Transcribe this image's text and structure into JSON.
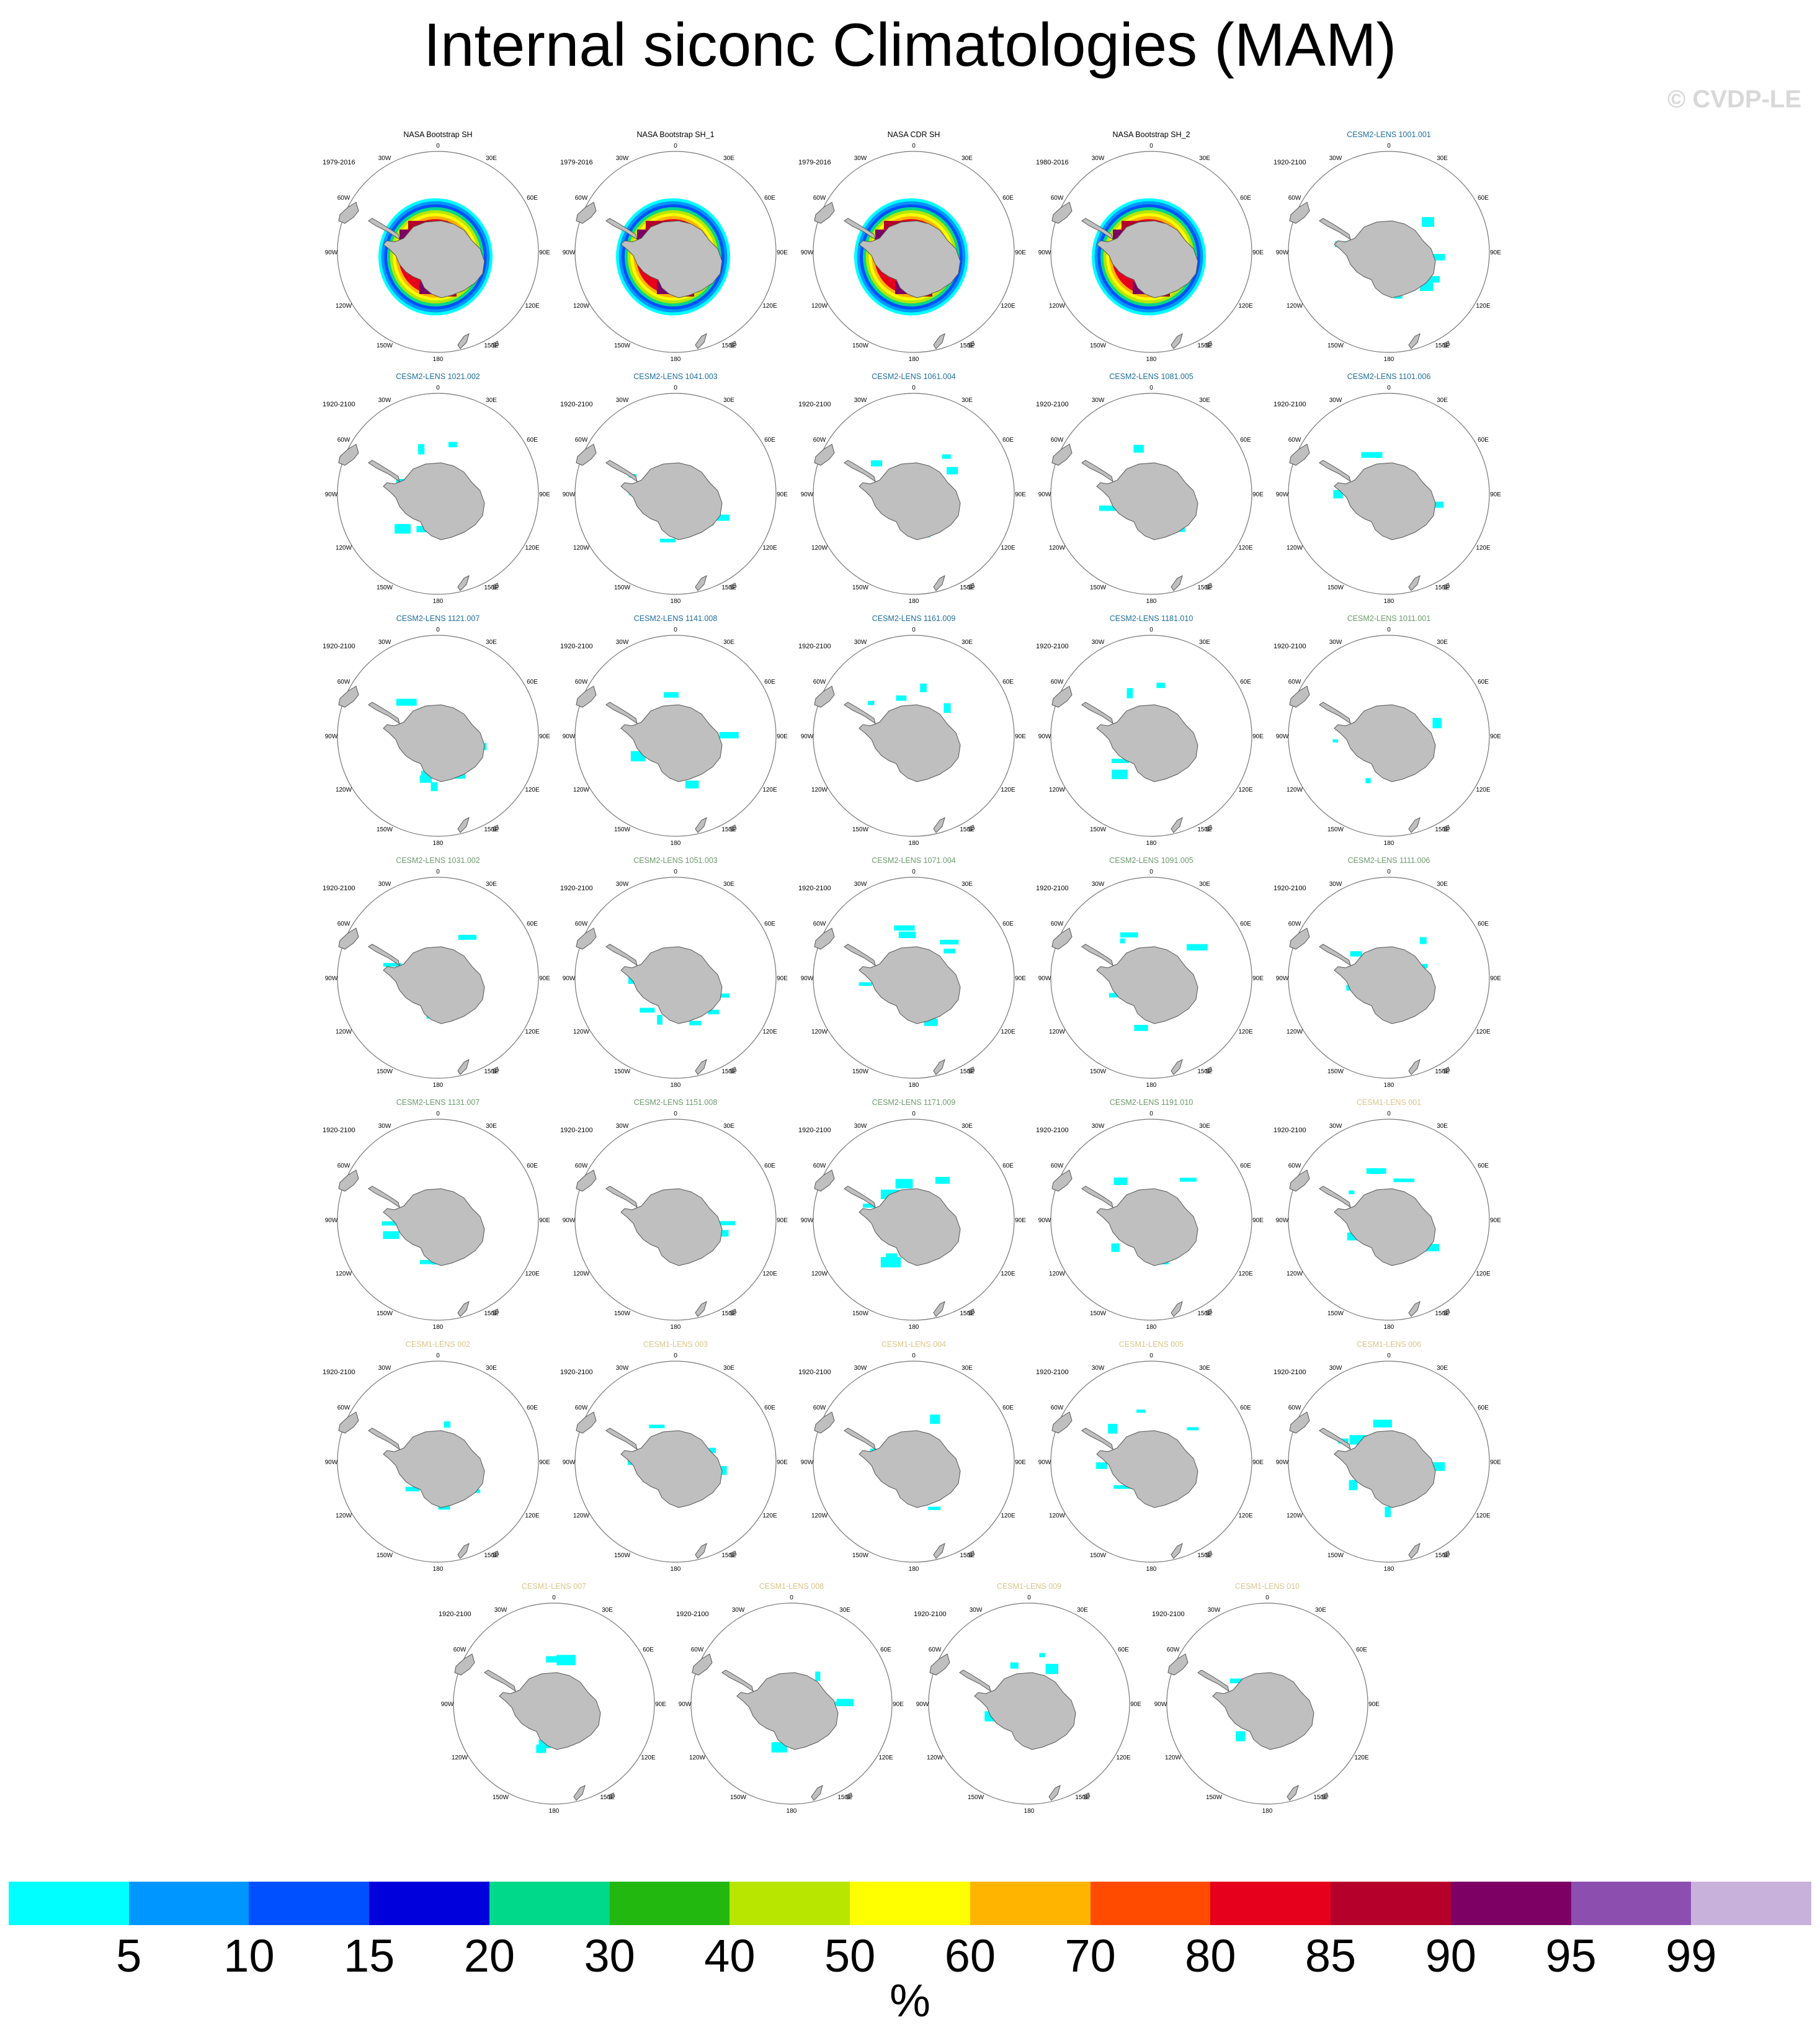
{
  "title": "Internal siconc Climatologies (MAM)",
  "copyright": "© CVDP-LE",
  "colorbar": {
    "units": "%",
    "labels": [
      "5",
      "10",
      "15",
      "20",
      "30",
      "40",
      "50",
      "60",
      "70",
      "80",
      "85",
      "90",
      "95",
      "99"
    ],
    "colors": [
      "#00ffff",
      "#0096ff",
      "#0050ff",
      "#0000dc",
      "#00d88a",
      "#22b810",
      "#b8e600",
      "#ffff00",
      "#ffb400",
      "#ff4b00",
      "#e6001c",
      "#b4002a",
      "#7d0064",
      "#8c4fb0",
      "#c8b2dc"
    ]
  },
  "map_labels": {
    "lon_0": "0",
    "lon_30w": "30W",
    "lon_30e": "30E",
    "lon_60w": "60W",
    "lon_60e": "60E",
    "lon_90w": "90W",
    "lon_90e": "90E",
    "lon_120w": "120W",
    "lon_120e": "120E",
    "lon_150w": "150W",
    "lon_150e": "150E",
    "lon_180": "180"
  },
  "panels": [
    {
      "title": "NASA Bootstrap SH",
      "period": "1979-2016",
      "title_color": "#000000",
      "ice": "full"
    },
    {
      "title": "NASA Bootstrap SH_1",
      "period": "1979-2016",
      "title_color": "#000000",
      "ice": "full"
    },
    {
      "title": "NASA CDR SH",
      "period": "1979-2016",
      "title_color": "#000000",
      "ice": "full"
    },
    {
      "title": "NASA Bootstrap SH_2",
      "period": "1980-2016",
      "title_color": "#000000",
      "ice": "full"
    },
    {
      "title": "CESM2-LENS 1001.001",
      "period": "1920-2100",
      "title_color": "#1f6e9c",
      "ice": "low"
    },
    {
      "title": "CESM2-LENS 1021.002",
      "period": "1920-2100",
      "title_color": "#1f6e9c",
      "ice": "low"
    },
    {
      "title": "CESM2-LENS 1041.003",
      "period": "1920-2100",
      "title_color": "#1f6e9c",
      "ice": "low"
    },
    {
      "title": "CESM2-LENS 1061.004",
      "period": "1920-2100",
      "title_color": "#1f6e9c",
      "ice": "low"
    },
    {
      "title": "CESM2-LENS 1081.005",
      "period": "1920-2100",
      "title_color": "#1f6e9c",
      "ice": "low"
    },
    {
      "title": "CESM2-LENS 1101.006",
      "period": "1920-2100",
      "title_color": "#1f6e9c",
      "ice": "low"
    },
    {
      "title": "CESM2-LENS 1121.007",
      "period": "1920-2100",
      "title_color": "#1f6e9c",
      "ice": "low"
    },
    {
      "title": "CESM2-LENS 1141.008",
      "period": "1920-2100",
      "title_color": "#1f6e9c",
      "ice": "low"
    },
    {
      "title": "CESM2-LENS 1161.009",
      "period": "1920-2100",
      "title_color": "#1f6e9c",
      "ice": "low"
    },
    {
      "title": "CESM2-LENS 1181.010",
      "period": "1920-2100",
      "title_color": "#1f6e9c",
      "ice": "low"
    },
    {
      "title": "CESM2-LENS 1011.001",
      "period": "1920-2100",
      "title_color": "#6e9a6e",
      "ice": "low"
    },
    {
      "title": "CESM2-LENS 1031.002",
      "period": "1920-2100",
      "title_color": "#6e9a6e",
      "ice": "low"
    },
    {
      "title": "CESM2-LENS 1051.003",
      "period": "1920-2100",
      "title_color": "#6e9a6e",
      "ice": "low"
    },
    {
      "title": "CESM2-LENS 1071.004",
      "period": "1920-2100",
      "title_color": "#6e9a6e",
      "ice": "low"
    },
    {
      "title": "CESM2-LENS 1091.005",
      "period": "1920-2100",
      "title_color": "#6e9a6e",
      "ice": "low"
    },
    {
      "title": "CESM2-LENS 1111.006",
      "period": "1920-2100",
      "title_color": "#6e9a6e",
      "ice": "low"
    },
    {
      "title": "CESM2-LENS 1131.007",
      "period": "1920-2100",
      "title_color": "#6e9a6e",
      "ice": "low"
    },
    {
      "title": "CESM2-LENS 1151.008",
      "period": "1920-2100",
      "title_color": "#6e9a6e",
      "ice": "low"
    },
    {
      "title": "CESM2-LENS 1171.009",
      "period": "1920-2100",
      "title_color": "#6e9a6e",
      "ice": "low"
    },
    {
      "title": "CESM2-LENS 1191.010",
      "period": "1920-2100",
      "title_color": "#6e9a6e",
      "ice": "low"
    },
    {
      "title": "CESM1-LENS 001",
      "period": "1920-2100",
      "title_color": "#d9c58a",
      "ice": "low"
    },
    {
      "title": "CESM1-LENS 002",
      "period": "1920-2100",
      "title_color": "#d9c58a",
      "ice": "low"
    },
    {
      "title": "CESM1-LENS 003",
      "period": "1920-2100",
      "title_color": "#d9c58a",
      "ice": "low"
    },
    {
      "title": "CESM1-LENS 004",
      "period": "1920-2100",
      "title_color": "#d9c58a",
      "ice": "low"
    },
    {
      "title": "CESM1-LENS 005",
      "period": "1920-2100",
      "title_color": "#d9c58a",
      "ice": "low"
    },
    {
      "title": "CESM1-LENS 006",
      "period": "1920-2100",
      "title_color": "#d9c58a",
      "ice": "low"
    },
    {
      "title": "CESM1-LENS 007",
      "period": "1920-2100",
      "title_color": "#d9c58a",
      "ice": "low"
    },
    {
      "title": "CESM1-LENS 008",
      "period": "1920-2100",
      "title_color": "#d9c58a",
      "ice": "low"
    },
    {
      "title": "CESM1-LENS 009",
      "period": "1920-2100",
      "title_color": "#d9c58a",
      "ice": "low"
    },
    {
      "title": "CESM1-LENS 010",
      "period": "1920-2100",
      "title_color": "#d9c58a",
      "ice": "low"
    }
  ]
}
